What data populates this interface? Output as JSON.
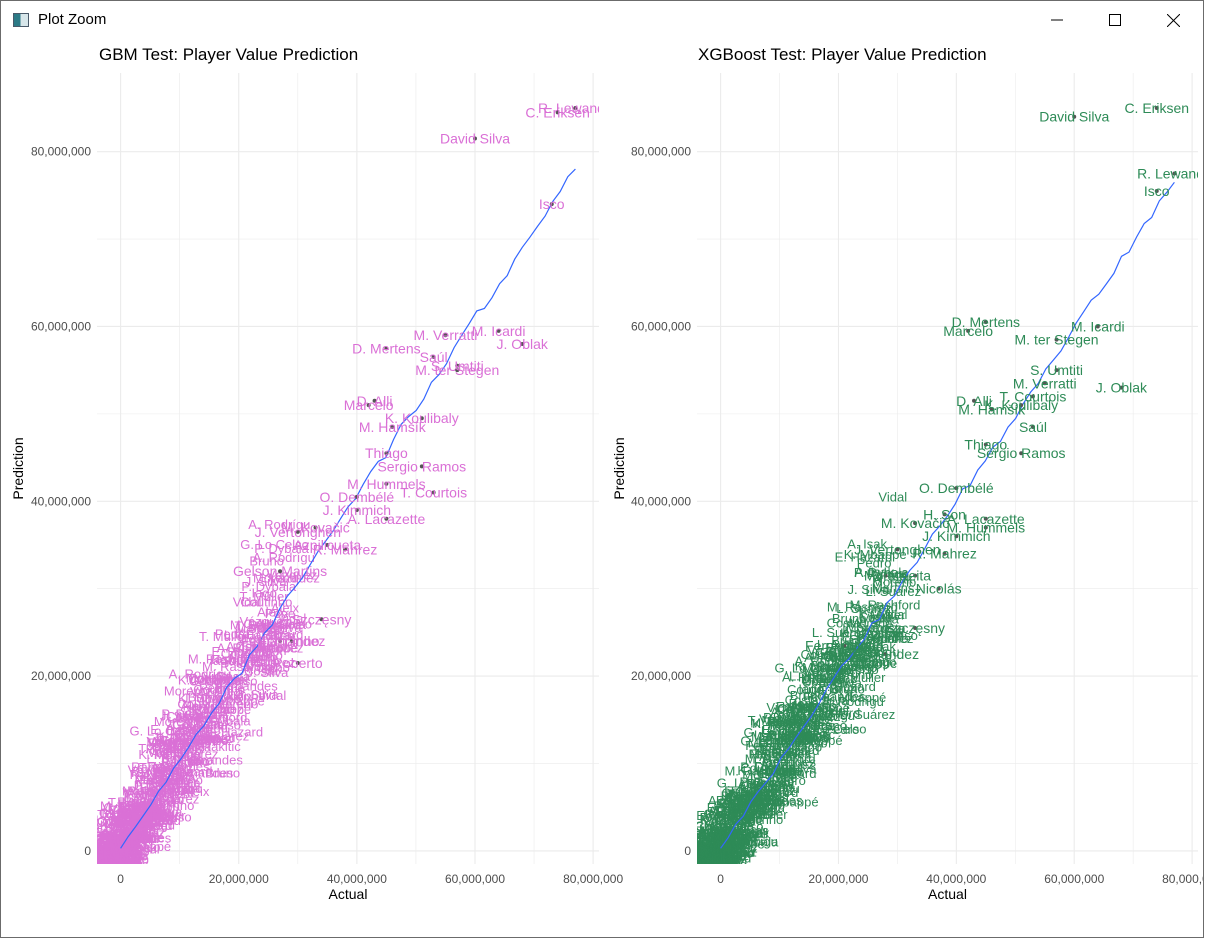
{
  "window": {
    "title": "Plot Zoom",
    "icon": "plot-zoom-app-icon",
    "controls": [
      "minimize-icon",
      "maximize-icon",
      "close-icon"
    ]
  },
  "colors": {
    "gbm_label": "#da70d6",
    "xgb_label": "#2e8b57",
    "fit_line": "#3366ff",
    "grid": "#ebebeb",
    "point": "#555555"
  },
  "chart_data": [
    {
      "type": "scatter",
      "title": "GBM Test: Player Value Prediction",
      "xlabel": "Actual",
      "ylabel": "Prediction",
      "xlim": [
        -4000000,
        81000000
      ],
      "ylim": [
        -1500000,
        89000000
      ],
      "x_ticks": [
        "0",
        "20,000,000",
        "40,000,000",
        "60,000,000",
        "80,000,000"
      ],
      "y_ticks": [
        "0",
        "20,000,000",
        "40,000,000",
        "60,000,000",
        "80,000,000"
      ],
      "grid": true,
      "fit_line": [
        [
          0,
          300000
        ],
        [
          77000000,
          78000000
        ]
      ],
      "labeled_points": [
        {
          "label": "R. Lewando",
          "x": 77000000,
          "y": 85000000
        },
        {
          "label": "C. Eriksen",
          "x": 74000000,
          "y": 84500000
        },
        {
          "label": "David Silva",
          "x": 60000000,
          "y": 81500000
        },
        {
          "label": "Isco",
          "x": 73000000,
          "y": 74000000
        },
        {
          "label": "M. Verratti",
          "x": 55000000,
          "y": 59000000
        },
        {
          "label": "M. Icardi",
          "x": 64000000,
          "y": 59500000
        },
        {
          "label": "D. Mertens",
          "x": 45000000,
          "y": 57500000
        },
        {
          "label": "J. Oblak",
          "x": 68000000,
          "y": 58000000
        },
        {
          "label": "Saúl",
          "x": 53000000,
          "y": 56500000
        },
        {
          "label": "S. Umtiti",
          "x": 57000000,
          "y": 55500000
        },
        {
          "label": "M. ter Stegen",
          "x": 57000000,
          "y": 55000000
        },
        {
          "label": "D. Alli",
          "x": 43000000,
          "y": 51500000
        },
        {
          "label": "Marcelo",
          "x": 42000000,
          "y": 51000000
        },
        {
          "label": "K. Koulibaly",
          "x": 51000000,
          "y": 49500000
        },
        {
          "label": "M. Hamšík",
          "x": 46000000,
          "y": 48500000
        },
        {
          "label": "Thiago",
          "x": 45000000,
          "y": 45500000
        },
        {
          "label": "Sergio Ramos",
          "x": 51000000,
          "y": 44000000
        },
        {
          "label": "M. Hummels",
          "x": 45000000,
          "y": 42000000
        },
        {
          "label": "O. Dembélé",
          "x": 40000000,
          "y": 40500000
        },
        {
          "label": "T. Courtois",
          "x": 53000000,
          "y": 41000000
        },
        {
          "label": "J. Kimmich",
          "x": 40000000,
          "y": 39000000
        },
        {
          "label": "A. Lacazette",
          "x": 45000000,
          "y": 38000000
        },
        {
          "label": "J. Vertonghen",
          "x": 30000000,
          "y": 36500000
        },
        {
          "label": "M. Kovačić",
          "x": 33000000,
          "y": 37000000
        },
        {
          "label": "Azpilicueta",
          "x": 35000000,
          "y": 35000000
        },
        {
          "label": "R. Mahrez",
          "x": 38000000,
          "y": 34500000
        },
        {
          "label": "Gelson Martins",
          "x": 27000000,
          "y": 32000000
        },
        {
          "label": "Szczęsny",
          "x": 34000000,
          "y": 26500000
        },
        {
          "label": "Fernandinho",
          "x": 27000000,
          "y": 24000000
        },
        {
          "label": "Roberto",
          "x": 30000000,
          "y": 21500000
        },
        {
          "label": "Fernández",
          "x": 29000000,
          "y": 24000000
        }
      ]
    },
    {
      "type": "scatter",
      "title": "XGBoost Test: Player Value Prediction",
      "xlabel": "Actual",
      "ylabel": "Prediction",
      "xlim": [
        -4000000,
        81000000
      ],
      "ylim": [
        -1500000,
        89000000
      ],
      "x_ticks": [
        "0",
        "20,000,000",
        "40,000,000",
        "60,000,000",
        "80,000,000"
      ],
      "y_ticks": [
        "0",
        "20,000,000",
        "40,000,000",
        "60,000,000",
        "80,000,000"
      ],
      "grid": true,
      "fit_line": [
        [
          0,
          300000
        ],
        [
          77000000,
          76500000
        ]
      ],
      "labeled_points": [
        {
          "label": "C. Eriksen",
          "x": 74000000,
          "y": 85000000
        },
        {
          "label": "David Silva",
          "x": 60000000,
          "y": 84000000
        },
        {
          "label": "R. Lewando",
          "x": 77000000,
          "y": 77500000
        },
        {
          "label": "Isco",
          "x": 74000000,
          "y": 75500000
        },
        {
          "label": "D. Mertens",
          "x": 45000000,
          "y": 60500000
        },
        {
          "label": "Marcelo",
          "x": 42000000,
          "y": 59500000
        },
        {
          "label": "M. Icardi",
          "x": 64000000,
          "y": 60000000
        },
        {
          "label": "M. ter Stegen",
          "x": 57000000,
          "y": 58500000
        },
        {
          "label": "S. Umtiti",
          "x": 57000000,
          "y": 55000000
        },
        {
          "label": "M. Verratti",
          "x": 55000000,
          "y": 53500000
        },
        {
          "label": "J. Oblak",
          "x": 68000000,
          "y": 53000000
        },
        {
          "label": "T. Courtois",
          "x": 53000000,
          "y": 52000000
        },
        {
          "label": "D. Alli",
          "x": 43000000,
          "y": 51500000
        },
        {
          "label": "K. Koulibaly",
          "x": 51000000,
          "y": 51000000
        },
        {
          "label": "M. Hamšík",
          "x": 46000000,
          "y": 50500000
        },
        {
          "label": "Saúl",
          "x": 53000000,
          "y": 48500000
        },
        {
          "label": "Thiago",
          "x": 45000000,
          "y": 46500000
        },
        {
          "label": "Sergio Ramos",
          "x": 51000000,
          "y": 45500000
        },
        {
          "label": "O. Dembélé",
          "x": 40000000,
          "y": 41500000
        },
        {
          "label": "H. Son",
          "x": 38000000,
          "y": 38500000
        },
        {
          "label": "A. Lacazette",
          "x": 45000000,
          "y": 38000000
        },
        {
          "label": "M. Kovačić",
          "x": 33000000,
          "y": 37500000
        },
        {
          "label": "M. Hummels",
          "x": 45000000,
          "y": 37000000
        },
        {
          "label": "J. Kimmich",
          "x": 40000000,
          "y": 36000000
        },
        {
          "label": "J. Vertonghen",
          "x": 30000000,
          "y": 34500000
        },
        {
          "label": "R. Mahrez",
          "x": 38000000,
          "y": 34000000
        },
        {
          "label": "Morata",
          "x": 28000000,
          "y": 31500000
        },
        {
          "label": "Keita",
          "x": 33000000,
          "y": 31500000
        },
        {
          "label": "Nicolás",
          "x": 37000000,
          "y": 30000000
        },
        {
          "label": "Szczęsny",
          "x": 33000000,
          "y": 25500000
        },
        {
          "label": "Fernandinho",
          "x": 21000000,
          "y": 23500000
        },
        {
          "label": "Fernández",
          "x": 28000000,
          "y": 22500000
        }
      ]
    }
  ]
}
